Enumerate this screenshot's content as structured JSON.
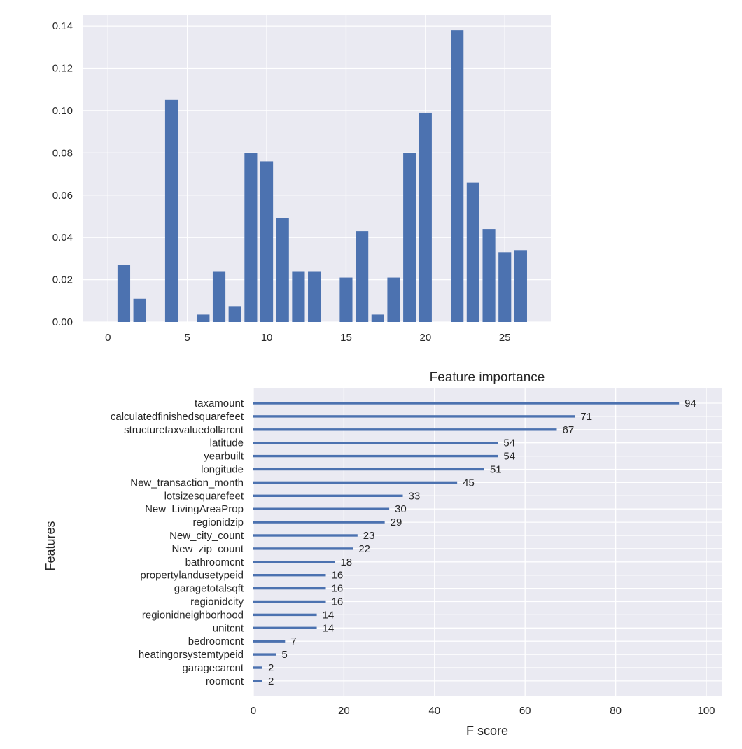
{
  "charts": {
    "colors": {
      "background": "#eaeaf2",
      "grid": "#ffffff",
      "bar": "#4c72b0",
      "text": "#262626"
    }
  },
  "chart_data": [
    {
      "type": "bar",
      "title": "",
      "xlabel": "",
      "ylabel": "",
      "x": [
        0,
        1,
        2,
        3,
        4,
        5,
        6,
        7,
        8,
        9,
        10,
        11,
        12,
        13,
        14,
        15,
        16,
        17,
        18,
        19,
        20,
        21,
        22,
        23,
        24,
        25,
        26
      ],
      "values": [
        0,
        0.027,
        0.011,
        0,
        0.105,
        0,
        0.0035,
        0.024,
        0.0075,
        0.08,
        0.076,
        0.049,
        0.024,
        0.024,
        0,
        0.021,
        0.043,
        0.0035,
        0.021,
        0.08,
        0.099,
        0,
        0.138,
        0.066,
        0.044,
        0.033,
        0.034
      ],
      "xlim": [
        -1.6,
        27.9
      ],
      "ylim": [
        0,
        0.145
      ],
      "xticks": [
        0,
        5,
        10,
        15,
        20,
        25
      ],
      "yticks": [
        0.0,
        0.02,
        0.04,
        0.06,
        0.08,
        0.1,
        0.12,
        0.14
      ],
      "ytick_labels": [
        "0.00",
        "0.02",
        "0.04",
        "0.06",
        "0.08",
        "0.10",
        "0.12",
        "0.14"
      ],
      "grid": true
    },
    {
      "type": "bar",
      "orientation": "horizontal",
      "title": "Feature importance",
      "xlabel": "F score",
      "ylabel": "Features",
      "categories": [
        "taxamount",
        "calculatedfinishedsquarefeet",
        "structuretaxvaluedollarcnt",
        "latitude",
        "yearbuilt",
        "longitude",
        "New_transaction_month",
        "lotsizesquarefeet",
        "New_LivingAreaProp",
        "regionidzip",
        "New_city_count",
        "New_zip_count",
        "bathroomcnt",
        "propertylandusetypeid",
        "garagetotalsqft",
        "regionidcity",
        "regionidneighborhood",
        "unitcnt",
        "bedroomcnt",
        "heatingorsystemtypeid",
        "garagecarcnt",
        "roomcnt"
      ],
      "values": [
        94,
        71,
        67,
        54,
        54,
        51,
        45,
        33,
        30,
        29,
        23,
        22,
        18,
        16,
        16,
        16,
        14,
        14,
        7,
        5,
        2,
        2
      ],
      "xlim": [
        0,
        103.4
      ],
      "xticks": [
        0,
        20,
        40,
        60,
        80,
        100
      ],
      "grid": true
    }
  ]
}
